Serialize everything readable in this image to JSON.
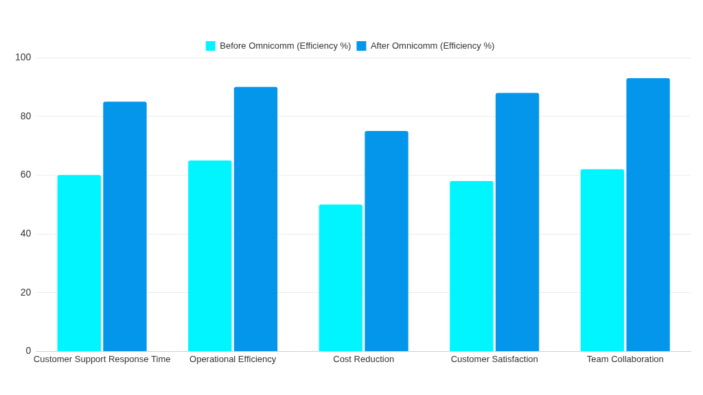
{
  "chart_data": {
    "type": "bar",
    "categories": [
      "Customer Support Response Time",
      "Operational Efficiency",
      "Cost Reduction",
      "Customer Satisfaction",
      "Team Collaboration"
    ],
    "series": [
      {
        "name": "Before Omnicomm (Efficiency %)",
        "color": "#00f5ff",
        "values": [
          60,
          65,
          50,
          58,
          62
        ]
      },
      {
        "name": "After Omnicomm (Efficiency %)",
        "color": "#0396eb",
        "values": [
          85,
          90,
          75,
          88,
          93
        ]
      }
    ],
    "ylim": [
      0,
      100
    ],
    "yticks": [
      0,
      20,
      40,
      60,
      80,
      100
    ],
    "grid": true,
    "legend": "top"
  }
}
